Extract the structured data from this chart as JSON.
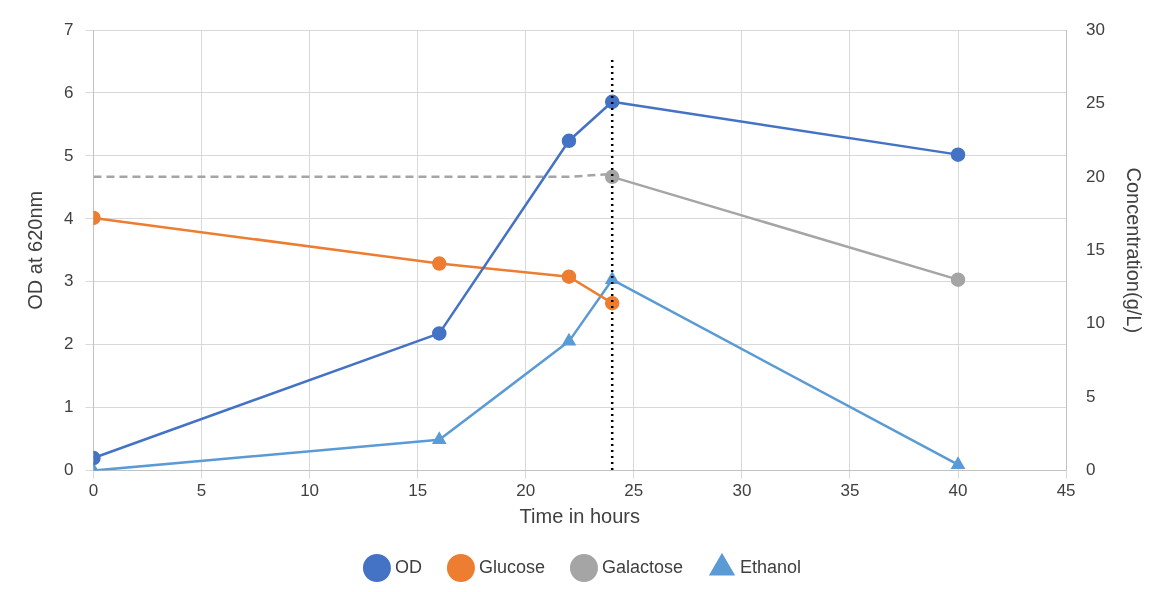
{
  "chart_data": {
    "type": "line",
    "xlabel": "Time in hours",
    "ylabel": "OD at 620nm",
    "y2label": "Concentration(g/L)",
    "xlim": [
      0,
      45
    ],
    "xticks": [
      0,
      5,
      10,
      15,
      20,
      25,
      30,
      35,
      40,
      45
    ],
    "ylim": [
      0,
      7
    ],
    "yticks": [
      0,
      1,
      2,
      3,
      4,
      5,
      6,
      7
    ],
    "y2lim": [
      0,
      30
    ],
    "y2ticks": [
      0,
      5,
      10,
      15,
      20,
      25,
      30
    ],
    "grid": true,
    "legend": "bottom",
    "series": [
      {
        "name": "OD",
        "color": "#4472c4",
        "marker": "circle",
        "axis": "y",
        "x": [
          0,
          16,
          22,
          24,
          40
        ],
        "values": [
          0.2,
          2.18,
          5.24,
          5.86,
          5.02
        ]
      },
      {
        "name": "Glucose",
        "color": "#ed7d31",
        "marker": "circle",
        "axis": "y2",
        "x": [
          0,
          16,
          22,
          24
        ],
        "values": [
          17.2,
          14.1,
          13.2,
          11.4
        ]
      },
      {
        "color": "#a5a5a5",
        "marker": "none",
        "line_style": "dashed",
        "axis": "y2",
        "x": [
          0,
          22,
          24
        ],
        "values": [
          20,
          20,
          20.2
        ]
      },
      {
        "name": "Galactose",
        "color": "#a5a5a5",
        "marker": "circle",
        "axis": "y2",
        "x": [
          24,
          40
        ],
        "values": [
          20,
          13
        ]
      },
      {
        "name": "Ethanol",
        "color": "#5b9bd5",
        "marker": "triangle",
        "axis": "y2",
        "x": [
          0,
          16,
          22,
          24,
          40
        ],
        "values": [
          0,
          2.1,
          8.8,
          13,
          0.4
        ]
      }
    ],
    "ref_lines": [
      {
        "axis": "x",
        "value": 24,
        "color": "#000000",
        "line_style": "dotted"
      }
    ]
  }
}
